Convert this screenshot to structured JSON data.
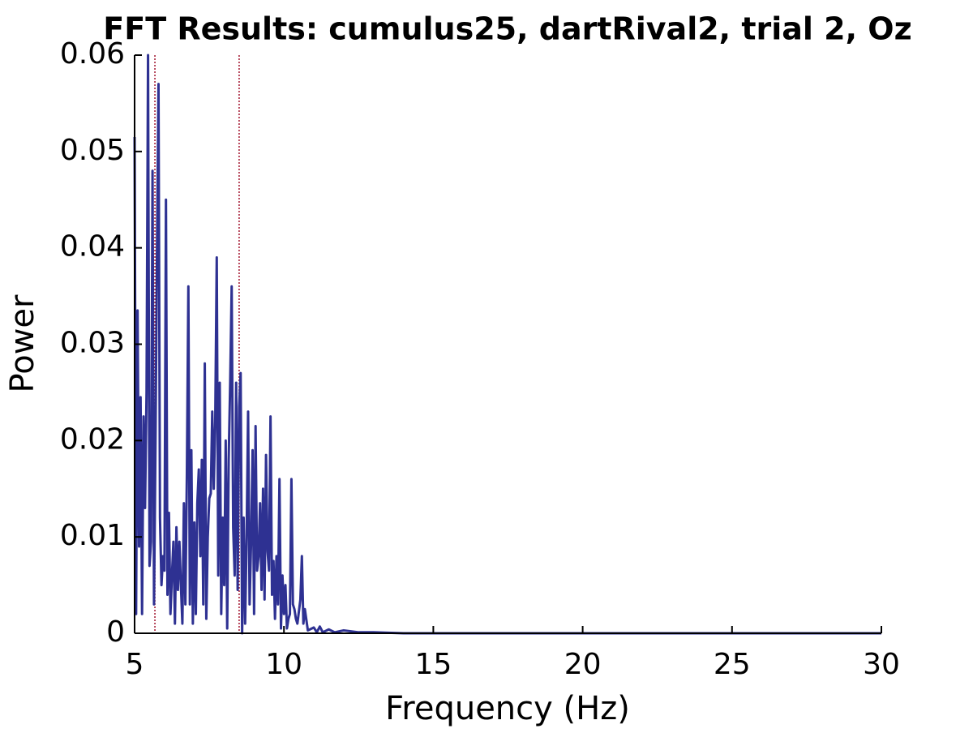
{
  "chart_data": {
    "type": "line",
    "title": "FFT Results: cumulus25, dartRival2, trial 2, Oz",
    "x_label": "Frequency (Hz)",
    "y_label": "Power",
    "xlim": [
      5,
      30
    ],
    "ylim": [
      0,
      0.06
    ],
    "xticks": [
      5,
      10,
      15,
      20,
      25,
      30
    ],
    "yticks": [
      0,
      0.01,
      0.02,
      0.03,
      0.04,
      0.05,
      0.06
    ],
    "vlines": [
      5.68,
      8.5
    ],
    "vline_color": "#a0102a",
    "x": [
      5.0,
      5.05,
      5.1,
      5.15,
      5.2,
      5.25,
      5.3,
      5.35,
      5.4,
      5.45,
      5.5,
      5.55,
      5.6,
      5.65,
      5.7,
      5.75,
      5.8,
      5.85,
      5.9,
      5.95,
      6.0,
      6.05,
      6.1,
      6.15,
      6.2,
      6.25,
      6.3,
      6.35,
      6.4,
      6.45,
      6.5,
      6.55,
      6.6,
      6.65,
      6.7,
      6.75,
      6.8,
      6.85,
      6.9,
      6.95,
      7.0,
      7.05,
      7.1,
      7.15,
      7.2,
      7.25,
      7.3,
      7.35,
      7.4,
      7.45,
      7.5,
      7.55,
      7.6,
      7.65,
      7.7,
      7.75,
      7.8,
      7.85,
      7.9,
      7.95,
      8.0,
      8.05,
      8.1,
      8.15,
      8.2,
      8.25,
      8.3,
      8.35,
      8.4,
      8.45,
      8.5,
      8.55,
      8.6,
      8.65,
      8.7,
      8.75,
      8.8,
      8.85,
      8.9,
      8.95,
      9.0,
      9.05,
      9.1,
      9.15,
      9.2,
      9.25,
      9.3,
      9.35,
      9.4,
      9.45,
      9.5,
      9.55,
      9.6,
      9.65,
      9.7,
      9.75,
      9.8,
      9.85,
      9.9,
      9.95,
      10.0,
      10.05,
      10.1,
      10.15,
      10.2,
      10.25,
      10.3,
      10.35,
      10.4,
      10.45,
      10.55,
      10.6,
      10.65,
      10.7,
      10.8,
      11.0,
      11.1,
      11.2,
      11.3,
      11.5,
      11.7,
      12.0,
      12.5,
      13.0,
      14.0,
      30.0
    ],
    "series": [
      {
        "name": "Power",
        "color": "#2e3192",
        "values": [
          0.0515,
          0.002,
          0.0335,
          0.009,
          0.0245,
          0.002,
          0.0225,
          0.013,
          0.025,
          0.06,
          0.007,
          0.0095,
          0.048,
          0.003,
          0.02,
          0.04,
          0.057,
          0.012,
          0.005,
          0.008,
          0.0065,
          0.045,
          0.004,
          0.0125,
          0.002,
          0.006,
          0.0095,
          0.001,
          0.011,
          0.0045,
          0.0095,
          0.005,
          0.001,
          0.0135,
          0.003,
          0.0165,
          0.036,
          0.003,
          0.019,
          0.001,
          0.0115,
          0.002,
          0.0135,
          0.017,
          0.008,
          0.018,
          0.003,
          0.028,
          0.0015,
          0.01,
          0.014,
          0.0145,
          0.023,
          0.015,
          0.022,
          0.039,
          0.006,
          0.026,
          0.002,
          0.012,
          0.005,
          0.02,
          0.0005,
          0.018,
          0.026,
          0.036,
          0.011,
          0.006,
          0.026,
          0.0045,
          0.0235,
          0.027,
          0.0,
          0.012,
          0.001,
          0.01,
          0.023,
          0.003,
          0.0095,
          0.019,
          0.002,
          0.0215,
          0.0065,
          0.008,
          0.0135,
          0.0045,
          0.015,
          0.0035,
          0.0185,
          0.0085,
          0.0065,
          0.0225,
          0.004,
          0.0075,
          0.0015,
          0.008,
          0.003,
          0.016,
          0.0005,
          0.006,
          0.002,
          0.005,
          0.0005,
          0.0015,
          0.002,
          0.016,
          0.003,
          0.0025,
          0.0015,
          0.001,
          0.0035,
          0.008,
          0.001,
          0.0025,
          0.0003,
          0.0006,
          0.0001,
          0.0007,
          0.0001,
          0.0004,
          0.0001,
          0.0003,
          0.0001,
          0.0001,
          0,
          0
        ]
      }
    ]
  }
}
